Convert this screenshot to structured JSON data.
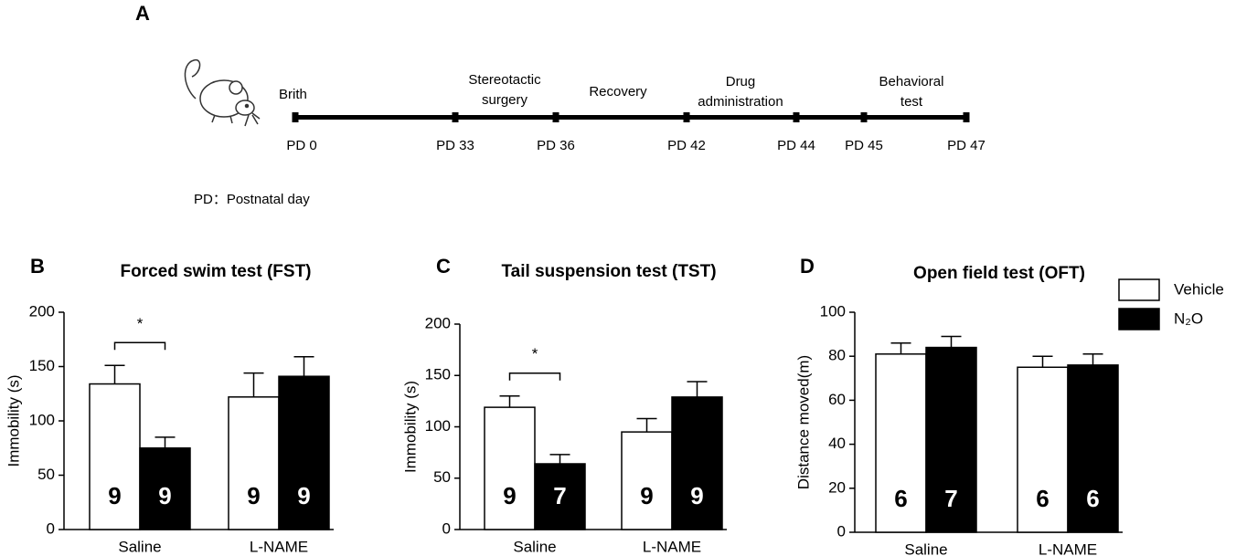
{
  "timeline": {
    "panel": "A",
    "stages": [
      {
        "lines": [
          "Brith"
        ]
      },
      {
        "lines": [
          "Stereotactic",
          "surgery"
        ]
      },
      {
        "lines": [
          "Recovery"
        ]
      },
      {
        "lines": [
          "Drug",
          "administration"
        ]
      },
      {
        "lines": [
          "Behavioral",
          "test"
        ]
      }
    ],
    "points": [
      "PD 0",
      "PD 33",
      "PD 36",
      "PD 42",
      "PD 44",
      "PD 45",
      "PD 47"
    ],
    "note": "PD：Postnatal day"
  },
  "chart_data": [
    {
      "type": "bar",
      "panel": "B",
      "title": "Forced swim test (FST)",
      "y_label": "Immobility (s)",
      "categories": [
        "Saline",
        "L-NAME"
      ],
      "significance": [
        "*",
        null
      ],
      "ylim": [
        0,
        200
      ],
      "yticks": [
        0,
        50,
        100,
        150,
        200
      ],
      "legend": false,
      "series": [
        {
          "name": "Vehicle",
          "color": "#ffffff",
          "values": [
            134,
            122
          ],
          "errors": [
            17,
            22
          ],
          "n_labels": [
            9,
            9
          ]
        },
        {
          "name": "N₂O",
          "color": "#000000",
          "values": [
            75,
            141
          ],
          "errors": [
            10,
            18
          ],
          "n_labels": [
            9,
            9
          ]
        }
      ]
    },
    {
      "type": "bar",
      "panel": "C",
      "title": "Tail suspension test (TST)",
      "y_label": "Immobility (s)",
      "categories": [
        "Saline",
        "L-NAME"
      ],
      "significance": [
        "*",
        null
      ],
      "ylim": [
        0,
        200
      ],
      "yticks": [
        0,
        50,
        100,
        150,
        200
      ],
      "legend": false,
      "series": [
        {
          "name": "Vehicle",
          "color": "#ffffff",
          "values": [
            119,
            95
          ],
          "errors": [
            11,
            13
          ],
          "n_labels": [
            9,
            9
          ]
        },
        {
          "name": "N₂O",
          "color": "#000000",
          "values": [
            64,
            129
          ],
          "errors": [
            9,
            15
          ],
          "n_labels": [
            7,
            9
          ]
        }
      ]
    },
    {
      "type": "bar",
      "panel": "D",
      "title": "Open field test (OFT)",
      "y_label": "Distance moved(m)",
      "categories": [
        "Saline",
        "L-NAME"
      ],
      "significance": [
        null,
        null
      ],
      "ylim": [
        0,
        100
      ],
      "yticks": [
        0,
        20,
        40,
        60,
        80,
        100
      ],
      "legend": "top-right",
      "series": [
        {
          "name": "Vehicle",
          "color": "#ffffff",
          "values": [
            81,
            75
          ],
          "errors": [
            5,
            5
          ],
          "n_labels": [
            6,
            6
          ]
        },
        {
          "name": "N₂O",
          "color": "#000000",
          "values": [
            84,
            76
          ],
          "errors": [
            5,
            5
          ],
          "n_labels": [
            7,
            6
          ]
        }
      ]
    }
  ]
}
